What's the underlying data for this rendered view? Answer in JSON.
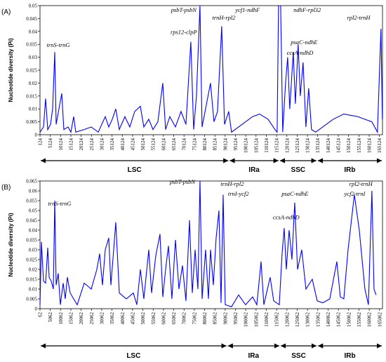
{
  "chart_data": [
    {
      "type": "line",
      "panel_label": "(A)",
      "ylabel": "Nucleotide diversity (Pi)",
      "color": "#0000ff",
      "xlim": [
        124,
        166600
      ],
      "ylim": [
        0,
        0.05
      ],
      "yticks": [
        0,
        0.005,
        0.01,
        0.015,
        0.02,
        0.025,
        0.03,
        0.035,
        0.04,
        0.045,
        0.05
      ],
      "xticks": [
        124,
        5124,
        10124,
        15124,
        20124,
        25124,
        30124,
        35124,
        40124,
        45124,
        50124,
        55124,
        60124,
        65124,
        70124,
        75124,
        80124,
        85124,
        90124,
        95124,
        100124,
        105124,
        110124,
        115124,
        120124,
        125124,
        130124,
        135124,
        140124,
        145124,
        150124,
        155124,
        160124,
        165124
      ],
      "x": [
        124,
        1829,
        2852,
        3875,
        5239,
        6262,
        7285,
        7967,
        9331,
        10695,
        11718,
        13764,
        15128,
        16492,
        17515,
        21607,
        25017,
        28427,
        31837,
        33542,
        35247,
        36952,
        38657,
        41385,
        43772,
        46159,
        48887,
        50592,
        52979,
        55025,
        57412,
        59799,
        61163,
        63209,
        65937,
        68665,
        71052,
        73439,
        74803,
        76167,
        77872,
        78895,
        80600,
        82987,
        84692,
        86397,
        88443,
        89807,
        91853,
        93217,
        98332,
        103447,
        106857,
        110949,
        114359,
        115382,
        116064,
        117087,
        118110,
        119474,
        120497,
        121520,
        123225,
        124248,
        125612,
        126635,
        127999,
        129363,
        130727,
        132091,
        134137,
        137547,
        142662,
        147777,
        154597,
        161417,
        164145,
        165850,
        166532
      ],
      "values": [
        0.001,
        0.003,
        0.014,
        0.002,
        0.004,
        0.01,
        0.032,
        0.004,
        0.01,
        0.016,
        0.002,
        0.003,
        0.001,
        0.007,
        0.001,
        0.002,
        0.003,
        0.001,
        0.007,
        0.003,
        0.006,
        0.01,
        0.002,
        0.007,
        0.003,
        0.009,
        0.011,
        0.003,
        0.006,
        0.002,
        0.005,
        0.02,
        0.002,
        0.007,
        0.003,
        0.009,
        0.004,
        0.036,
        0.002,
        0.015,
        0.05,
        0.003,
        0.01,
        0.02,
        0.005,
        0.009,
        0.042,
        0.004,
        0.009,
        0.001,
        0.004,
        0.007,
        0.008,
        0.006,
        0.002,
        0.001,
        0.05,
        0.05,
        0.001,
        0.02,
        0.03,
        0.01,
        0.032,
        0.012,
        0.035,
        0.015,
        0.028,
        0.003,
        0.018,
        0.002,
        0.001,
        0.003,
        0.006,
        0.008,
        0.007,
        0.005,
        0.001,
        0.041,
        0.006
      ],
      "annotations": [
        {
          "text": "trnS-trnG",
          "x": 9000,
          "y": 0.034
        },
        {
          "text": "rps12-clpP",
          "x": 70000,
          "y": 0.039
        },
        {
          "text": "psbT-psbN",
          "x": 70000,
          "y": 0.0475
        },
        {
          "text": "trnH-rpl2",
          "x": 89500,
          "y": 0.0445
        },
        {
          "text": "ycf1-ndhF",
          "x": 101000,
          "y": 0.0475
        },
        {
          "text": "ndhF-rpl32",
          "x": 130000,
          "y": 0.0475
        },
        {
          "text": "psaC-ndhE",
          "x": 128500,
          "y": 0.035
        },
        {
          "text": "ccsA-ndhD",
          "x": 126500,
          "y": 0.031
        },
        {
          "text": "rpl2-trnH",
          "x": 155000,
          "y": 0.0445
        }
      ],
      "regions": [
        {
          "name": "LSC",
          "start": 124,
          "end": 92000
        },
        {
          "name": "IRa",
          "start": 92000,
          "end": 116400
        },
        {
          "name": "SSC",
          "start": 116400,
          "end": 134800
        },
        {
          "name": "IRb",
          "start": 134800,
          "end": 166600
        }
      ]
    },
    {
      "type": "line",
      "panel_label": "(B)",
      "ylabel": "Nucleotide diversity (Pi)",
      "color": "#0000ff",
      "xlim": [
        62,
        166500
      ],
      "ylim": [
        0,
        0.065
      ],
      "yticks": [
        0,
        0.005,
        0.01,
        0.015,
        0.02,
        0.025,
        0.03,
        0.035,
        0.04,
        0.045,
        0.05,
        0.055,
        0.06,
        0.065
      ],
      "xticks": [
        62,
        5062,
        10062,
        15062,
        20062,
        25062,
        30062,
        35062,
        40062,
        45062,
        50062,
        55062,
        60062,
        65062,
        70062,
        75062,
        80062,
        85062,
        90062,
        95062,
        100062,
        105062,
        110062,
        115062,
        120062,
        125062,
        130062,
        135062,
        140062,
        145062,
        150062,
        155062,
        160062,
        165062
      ],
      "x": [
        62,
        744,
        1767,
        2790,
        3813,
        4495,
        5518,
        6541,
        7223,
        7905,
        8928,
        9951,
        11315,
        12338,
        13361,
        14725,
        18135,
        21545,
        24955,
        27683,
        29047,
        30411,
        31775,
        33480,
        34503,
        35867,
        36890,
        38595,
        42005,
        45415,
        47120,
        48825,
        50530,
        52917,
        54281,
        56327,
        58373,
        59737,
        61101,
        62465,
        64170,
        65875,
        67580,
        69285,
        70990,
        72695,
        74059,
        75423,
        76787,
        77810,
        78833,
        80538,
        81902,
        82925,
        84289,
        85653,
        87017,
        88040,
        89063,
        90086,
        93155,
        96565,
        99975,
        103385,
        105431,
        107477,
        108841,
        111910,
        113615,
        116343,
        117707,
        118730,
        119753,
        121117,
        122481,
        123845,
        125209,
        127255,
        129301,
        132370,
        134757,
        137485,
        140895,
        144305,
        146010,
        147715,
        149761,
        152830,
        155217,
        157945,
        159650,
        161355,
        162378,
        163401
      ],
      "values": [
        0.002,
        0.034,
        0.014,
        0.013,
        0.031,
        0.016,
        0.014,
        0.01,
        0.055,
        0.012,
        0.018,
        0.002,
        0.013,
        0.005,
        0.016,
        0.008,
        0.002,
        0.013,
        0.01,
        0.02,
        0.028,
        0.012,
        0.03,
        0.036,
        0.012,
        0.03,
        0.044,
        0.008,
        0.005,
        0.008,
        0.002,
        0.02,
        0.005,
        0.03,
        0.008,
        0.027,
        0.038,
        0.006,
        0.02,
        0.032,
        0.005,
        0.035,
        0.01,
        0.022,
        0.004,
        0.045,
        0.008,
        0.03,
        0.01,
        0.065,
        0.005,
        0.03,
        0.005,
        0.03,
        0.012,
        0.036,
        0.05,
        0.003,
        0.058,
        0.002,
        0.001,
        0.007,
        0.002,
        0.006,
        0.002,
        0.024,
        0.002,
        0.016,
        0.004,
        0.002,
        0.028,
        0.041,
        0.02,
        0.04,
        0.025,
        0.054,
        0.02,
        0.03,
        0.01,
        0.015,
        0.004,
        0.003,
        0.005,
        0.024,
        0.006,
        0.005,
        0.03,
        0.058,
        0.04,
        0.01,
        0.002,
        0.06,
        0.01,
        0.007
      ],
      "annotations": [
        {
          "text": "trnS-trnG",
          "x": 9600,
          "y": 0.0525
        },
        {
          "text": "psbT-psbN",
          "x": 69300,
          "y": 0.0635
        },
        {
          "text": "trnH-rpl2",
          "x": 93500,
          "y": 0.0625
        },
        {
          "text": "trnI-ycf2",
          "x": 96500,
          "y": 0.0575
        },
        {
          "text": "ccsA-ndhD",
          "x": 119700,
          "y": 0.0455
        },
        {
          "text": "psaC-ndhE",
          "x": 124000,
          "y": 0.0575
        },
        {
          "text": "ycf2-trnI",
          "x": 153000,
          "y": 0.0575
        },
        {
          "text": "rpl2-trnH",
          "x": 156000,
          "y": 0.0625
        }
      ],
      "regions": [
        {
          "name": "LSC",
          "start": 62,
          "end": 91000
        },
        {
          "name": "IRa",
          "start": 91000,
          "end": 116700
        },
        {
          "name": "SSC",
          "start": 116700,
          "end": 134800
        },
        {
          "name": "IRb",
          "start": 134800,
          "end": 166500
        }
      ]
    }
  ]
}
